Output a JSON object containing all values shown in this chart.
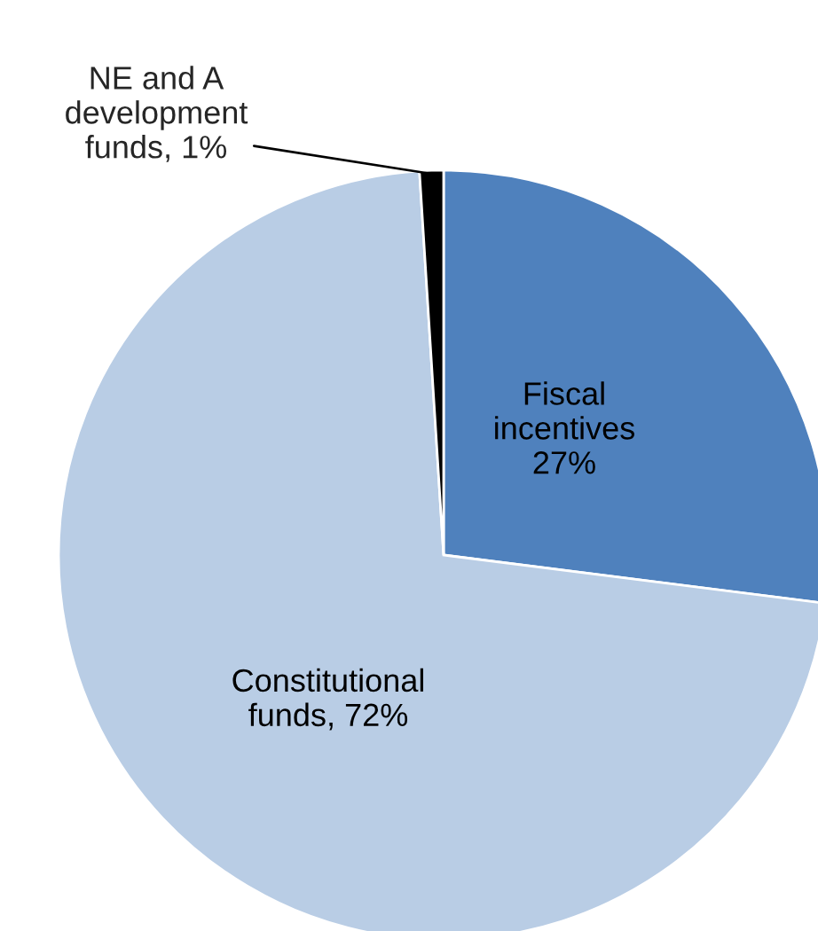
{
  "chart_data": {
    "type": "pie",
    "categories": [
      null,
      null,
      null
    ],
    "values": [
      27,
      72,
      1
    ],
    "colors": [
      "#4f81bd",
      "#b9cde5",
      "#000000"
    ],
    "value_labels": [
      "Fiscal\nincentives\n27%",
      "Constitutional\nfunds, 72%",
      "NE and A\ndevelopment\nfunds, 1%"
    ]
  }
}
